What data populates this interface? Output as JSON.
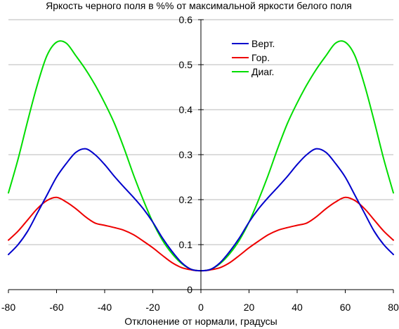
{
  "chart_data": {
    "type": "line",
    "title": "Яркость черного поля в %% от максимальной яркости белого поля",
    "xlabel": "Отклонение от нормали, градусы",
    "ylabel": "",
    "xlim": [
      -80,
      80
    ],
    "ylim": [
      0,
      0.6
    ],
    "x_ticks": [
      "-80",
      "-60",
      "-40",
      "-20",
      "0",
      "20",
      "40",
      "60",
      "80"
    ],
    "y_ticks": [
      "0",
      "0.1",
      "0.2",
      "0.3",
      "0.4",
      "0.5",
      "0.6"
    ],
    "grid": "horizontal",
    "legend_position": "top-right",
    "series": [
      {
        "name": "Верт.",
        "color": "#0000cc",
        "x": [
          -80,
          -76,
          -72,
          -68,
          -64,
          -60,
          -56,
          -52,
          -48,
          -44,
          -40,
          -36,
          -32,
          -28,
          -24,
          -20,
          -16,
          -12,
          -8,
          -4,
          0,
          4,
          8,
          12,
          16,
          20,
          24,
          28,
          32,
          36,
          40,
          44,
          48,
          52,
          56,
          60,
          64,
          68,
          72,
          76,
          80
        ],
        "y": [
          0.078,
          0.1,
          0.13,
          0.17,
          0.21,
          0.25,
          0.28,
          0.305,
          0.313,
          0.3,
          0.278,
          0.252,
          0.228,
          0.205,
          0.18,
          0.15,
          0.115,
          0.085,
          0.06,
          0.045,
          0.042,
          0.045,
          0.06,
          0.085,
          0.115,
          0.15,
          0.18,
          0.205,
          0.228,
          0.252,
          0.278,
          0.3,
          0.313,
          0.305,
          0.28,
          0.25,
          0.21,
          0.17,
          0.13,
          0.1,
          0.078
        ]
      },
      {
        "name": "Гор.",
        "color": "#ee0000",
        "x": [
          -80,
          -76,
          -72,
          -68,
          -64,
          -60,
          -56,
          -52,
          -48,
          -44,
          -40,
          -36,
          -32,
          -28,
          -24,
          -20,
          -16,
          -12,
          -8,
          -4,
          0,
          4,
          8,
          12,
          16,
          20,
          24,
          28,
          32,
          36,
          40,
          44,
          48,
          52,
          56,
          60,
          64,
          68,
          72,
          76,
          80
        ],
        "y": [
          0.11,
          0.13,
          0.155,
          0.18,
          0.198,
          0.205,
          0.195,
          0.18,
          0.162,
          0.148,
          0.143,
          0.138,
          0.132,
          0.122,
          0.108,
          0.093,
          0.076,
          0.06,
          0.049,
          0.044,
          0.042,
          0.044,
          0.049,
          0.06,
          0.076,
          0.093,
          0.108,
          0.122,
          0.132,
          0.138,
          0.143,
          0.148,
          0.162,
          0.18,
          0.195,
          0.205,
          0.198,
          0.18,
          0.155,
          0.13,
          0.11
        ]
      },
      {
        "name": "Диаг.",
        "color": "#00dd00",
        "x": [
          -80,
          -76,
          -72,
          -68,
          -64,
          -60,
          -56,
          -52,
          -48,
          -44,
          -40,
          -36,
          -32,
          -28,
          -24,
          -20,
          -16,
          -12,
          -8,
          -4,
          0,
          4,
          8,
          12,
          16,
          20,
          24,
          28,
          32,
          36,
          40,
          44,
          48,
          52,
          56,
          60,
          64,
          68,
          72,
          76,
          80
        ],
        "y": [
          0.215,
          0.29,
          0.375,
          0.455,
          0.52,
          0.55,
          0.548,
          0.52,
          0.49,
          0.455,
          0.415,
          0.37,
          0.315,
          0.255,
          0.2,
          0.15,
          0.11,
          0.08,
          0.058,
          0.045,
          0.042,
          0.045,
          0.058,
          0.08,
          0.11,
          0.15,
          0.2,
          0.255,
          0.315,
          0.37,
          0.415,
          0.455,
          0.49,
          0.52,
          0.548,
          0.55,
          0.52,
          0.455,
          0.375,
          0.29,
          0.215
        ]
      }
    ]
  }
}
